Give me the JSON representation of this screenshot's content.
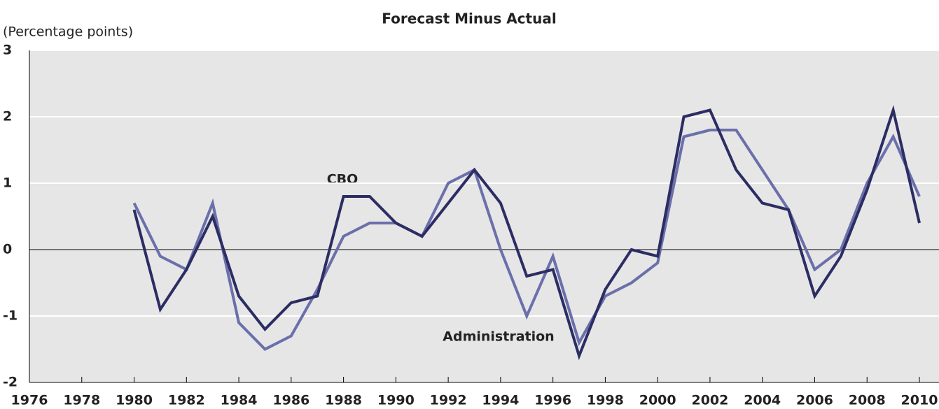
{
  "chart_data": {
    "type": "line",
    "title": "Forecast Minus Actual",
    "y_label": "(Percentage points)",
    "x": [
      1980,
      1981,
      1982,
      1983,
      1984,
      1985,
      1986,
      1987,
      1988,
      1989,
      1990,
      1991,
      1992,
      1993,
      1994,
      1995,
      1996,
      1997,
      1998,
      1999,
      2000,
      2001,
      2002,
      2003,
      2004,
      2005,
      2006,
      2007,
      2008,
      2009,
      2010
    ],
    "series": [
      {
        "name": "CBO",
        "color": "#2b2d63",
        "values": [
          0.6,
          -0.9,
          -0.3,
          0.5,
          -0.7,
          -1.2,
          -0.8,
          -0.7,
          0.8,
          0.8,
          0.4,
          0.2,
          0.7,
          1.2,
          0.7,
          -0.4,
          -0.3,
          -1.6,
          -0.6,
          0.0,
          -0.1,
          2.0,
          2.1,
          1.2,
          0.7,
          0.6,
          -0.7,
          -0.1,
          0.9,
          2.1,
          0.4
        ]
      },
      {
        "name": "Administration",
        "color": "#6b6faa",
        "values": [
          0.7,
          -0.1,
          -0.3,
          0.7,
          -1.1,
          -1.5,
          -1.3,
          -0.6,
          0.2,
          0.4,
          0.4,
          0.2,
          1.0,
          1.2,
          0.0,
          -1.0,
          -0.1,
          -1.4,
          -0.7,
          -0.5,
          -0.2,
          1.7,
          1.8,
          1.8,
          1.2,
          0.6,
          -0.3,
          0.0,
          1.0,
          1.7,
          0.8
        ]
      }
    ],
    "xlim": [
      1976,
      2010
    ],
    "xticks": [
      1976,
      1978,
      1980,
      1982,
      1984,
      1986,
      1988,
      1990,
      1992,
      1994,
      1996,
      1998,
      2000,
      2002,
      2004,
      2006,
      2008,
      2010
    ],
    "ylim": [
      -2,
      3
    ],
    "yticks": [
      -2,
      -1,
      0,
      1,
      2,
      3
    ],
    "grid": true
  }
}
